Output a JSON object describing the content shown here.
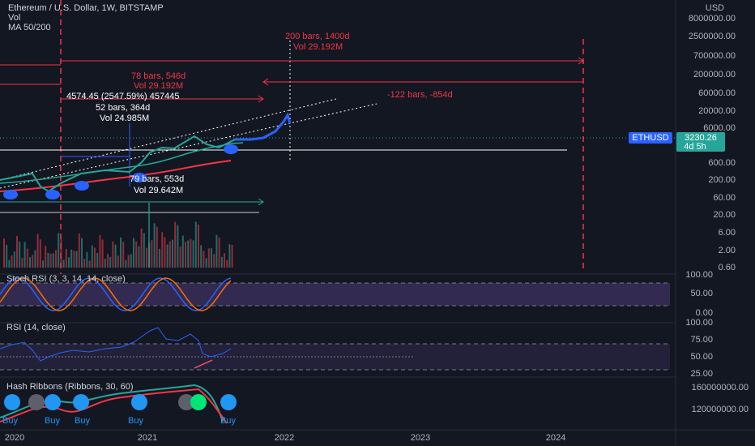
{
  "header": {
    "title": "Ethereum / U.S. Dollar, 1W, BITSTAMP",
    "indicators": [
      "Vol",
      "MA 50/200"
    ]
  },
  "price_axis": {
    "unit": "USD",
    "labels": [
      "8000000.00",
      "2500000.00",
      "700000.00",
      "200000.00",
      "60000.00",
      "20000.00",
      "6000.00",
      "600.00",
      "200.00",
      "60.00",
      "20.00",
      "6.00",
      "2.00",
      "0.60"
    ]
  },
  "last_price": {
    "symbol": "ETHUSD",
    "price": "3230.26",
    "countdown": "4d 5h"
  },
  "annotations": [
    "200 bars, 1400d",
    "Vol 29.192M",
    "78 bars, 546d",
    "Vol 29.192M",
    "4574.45 (2547.59%) 457445",
    "52 bars, 364d",
    "Vol 24.985M",
    "-122 bars, -854d",
    "79 bars, 553d",
    "Vol 29.642M"
  ],
  "stoch_rsi": {
    "title": "Stoch RSI (3, 3, 14, 14, close)",
    "axis": [
      "100.00",
      "50.00",
      "0.00"
    ]
  },
  "rsi": {
    "title": "RSI (14, close)",
    "axis": [
      "100.00",
      "75.00",
      "50.00",
      "25.00"
    ]
  },
  "hash_ribbons": {
    "title": "Hash Ribbons (Ribbons, 30, 60)",
    "axis": [
      "160000000.00",
      "120000000.00"
    ],
    "signals": [
      "Buy",
      "Buy",
      "Buy",
      "Buy",
      "Buy"
    ]
  },
  "time_axis": [
    "2020",
    "2021",
    "2022",
    "2023",
    "2024"
  ]
}
